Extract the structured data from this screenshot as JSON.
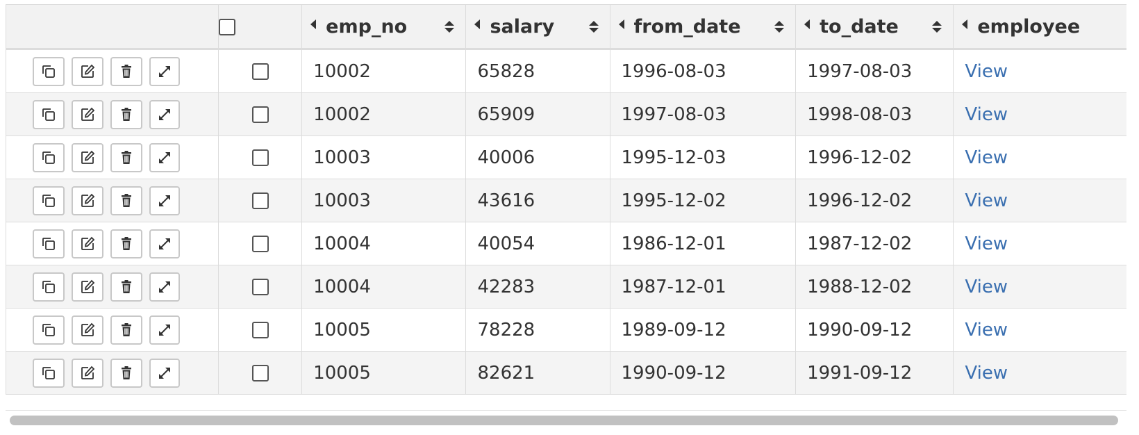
{
  "headers": {
    "emp_no": "emp_no",
    "salary": "salary",
    "from_date": "from_date",
    "to_date": "to_date",
    "employee": "employee"
  },
  "rows": [
    {
      "emp_no": "10002",
      "salary": "65828",
      "from_date": "1996-08-03",
      "to_date": "1997-08-03",
      "link": "View"
    },
    {
      "emp_no": "10002",
      "salary": "65909",
      "from_date": "1997-08-03",
      "to_date": "1998-08-03",
      "link": "View"
    },
    {
      "emp_no": "10003",
      "salary": "40006",
      "from_date": "1995-12-03",
      "to_date": "1996-12-02",
      "link": "View"
    },
    {
      "emp_no": "10003",
      "salary": "43616",
      "from_date": "1995-12-02",
      "to_date": "1996-12-02",
      "link": "View"
    },
    {
      "emp_no": "10004",
      "salary": "40054",
      "from_date": "1986-12-01",
      "to_date": "1987-12-02",
      "link": "View"
    },
    {
      "emp_no": "10004",
      "salary": "42283",
      "from_date": "1987-12-01",
      "to_date": "1988-12-02",
      "link": "View"
    },
    {
      "emp_no": "10005",
      "salary": "78228",
      "from_date": "1989-09-12",
      "to_date": "1990-09-12",
      "link": "View"
    },
    {
      "emp_no": "10005",
      "salary": "82621",
      "from_date": "1990-09-12",
      "to_date": "1991-09-12",
      "link": "View"
    }
  ],
  "row_actions": [
    "copy-icon",
    "edit-icon",
    "delete-icon",
    "expand-icon"
  ],
  "colors": {
    "link": "#3a6fb0",
    "header_bg": "#f2f2f2",
    "row_alt_bg": "#f4f4f4",
    "border": "#dcdcdc"
  }
}
